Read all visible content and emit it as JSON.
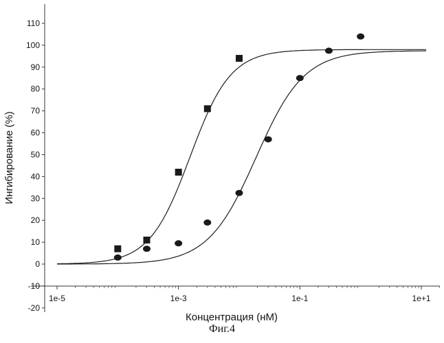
{
  "chart_data": {
    "type": "scatter",
    "xlabel": "Концентрация (нМ)",
    "ylabel": "Ингибирование (%)",
    "x_scale": "log",
    "xlim": [
      1e-05,
      1.4
    ],
    "ylim": [
      -20,
      115
    ],
    "x_ticks": [
      {
        "value": 1e-05,
        "label": "1e-5"
      },
      {
        "value": 0.001,
        "label": "1e-3"
      },
      {
        "value": 0.1,
        "label": "1e-1"
      },
      {
        "value": 10,
        "label": "1e+1"
      }
    ],
    "y_ticks": [
      -20,
      -10,
      0,
      10,
      20,
      30,
      40,
      50,
      60,
      70,
      80,
      90,
      100,
      110
    ],
    "grid": false,
    "series": [
      {
        "marker": "square",
        "color": "#1a1a1a",
        "x": [
          0.0001,
          0.0003,
          0.001,
          0.003,
          0.01
        ],
        "y": [
          7,
          11,
          42,
          71,
          94
        ],
        "fit": {
          "bottom": 0,
          "top": 98,
          "ec50": 0.00155,
          "hill": 1.3
        }
      },
      {
        "marker": "circle",
        "color": "#1a1a1a",
        "x": [
          0.0001,
          0.0003,
          0.001,
          0.003,
          0.01,
          0.03,
          0.1,
          0.3,
          1.0
        ],
        "y": [
          3,
          7,
          9.5,
          19,
          32.5,
          57,
          85,
          97.5,
          104
        ],
        "fit": {
          "bottom": 0,
          "top": 97.5,
          "ec50": 0.019,
          "hill": 1.1
        }
      }
    ]
  },
  "caption": "Фиг.4"
}
